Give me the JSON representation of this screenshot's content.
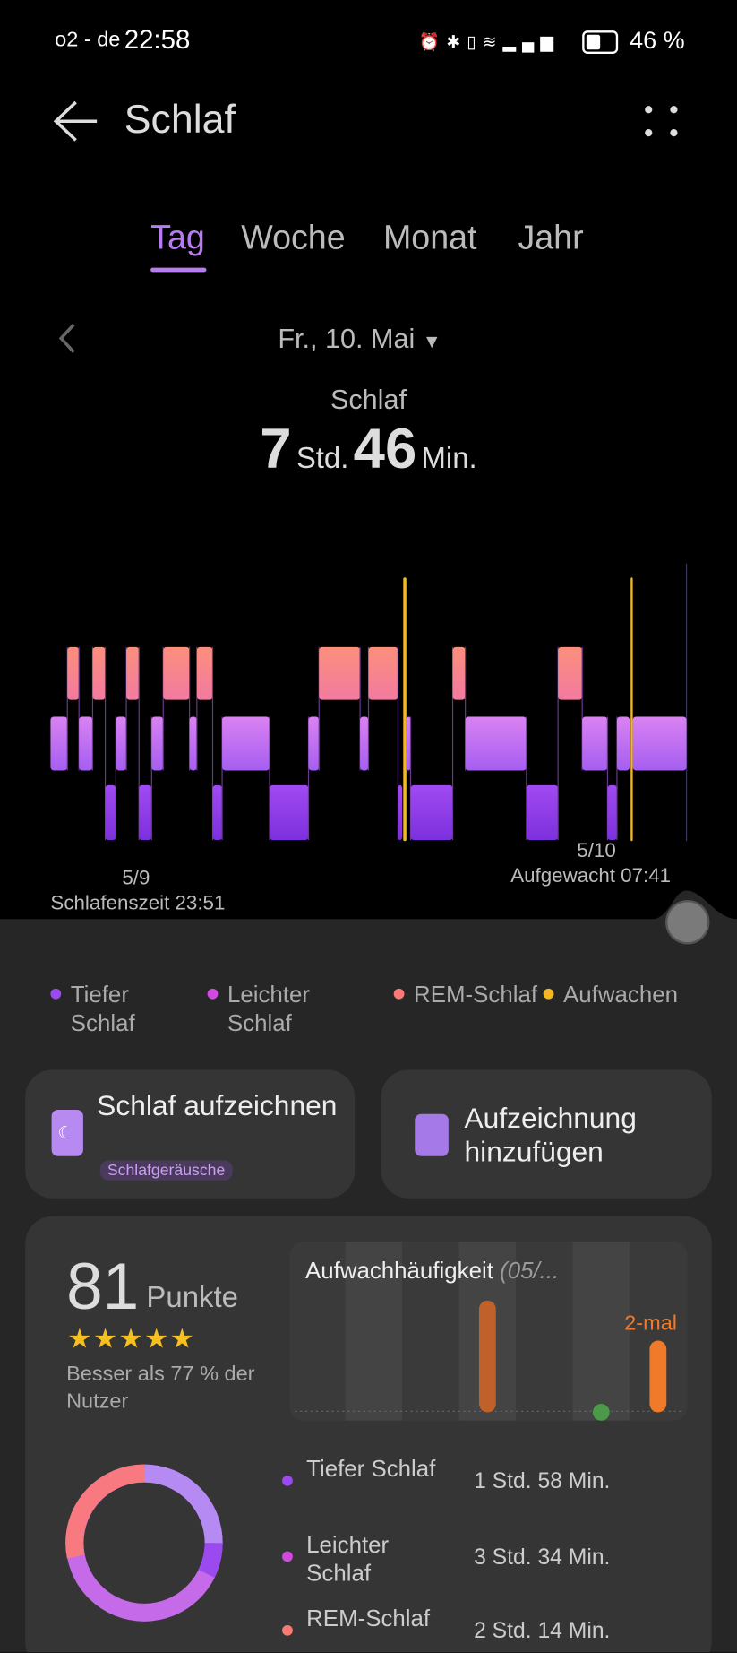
{
  "status_bar": {
    "carrier": "o2 - de",
    "time": "22:58",
    "battery": "46 %"
  },
  "header": {
    "title": "Schlaf"
  },
  "tabs": [
    "Tag",
    "Woche",
    "Monat",
    "Jahr"
  ],
  "date": "Fr., 10. Mai",
  "summary": {
    "label": "Schlaf",
    "hours": "7",
    "hours_unit": "Std.",
    "minutes": "46",
    "minutes_unit": "Min."
  },
  "hypnogram": {
    "start_date": "5/9",
    "start_label": "Schlafenszeit 23:51",
    "end_date": "5/10",
    "end_label": "Aufgewacht 07:41"
  },
  "legend": [
    "Tiefer Schlaf",
    "Leichter Schlaf",
    "REM-Schlaf",
    "Aufwachen"
  ],
  "actions": [
    {
      "title": "Schlaf aufzeichnen",
      "badge": "Schlafgeräusche"
    },
    {
      "title": "Aufzeichnung hinzufügen"
    }
  ],
  "score": {
    "value": "81",
    "unit": "Punkte",
    "comparison": "Besser als 77 % der Nutzer"
  },
  "wake_chart": {
    "title": "Aufwachhäufigkeit",
    "period": "(05/...",
    "label": "2-mal"
  },
  "breakdown": [
    {
      "name": "Tiefer Schlaf",
      "duration": "1 Std. 58 Min."
    },
    {
      "name": "Leichter Schlaf",
      "duration": "3 Std. 34 Min."
    },
    {
      "name": "REM-Schlaf",
      "duration": "2 Std. 14 Min."
    }
  ]
}
